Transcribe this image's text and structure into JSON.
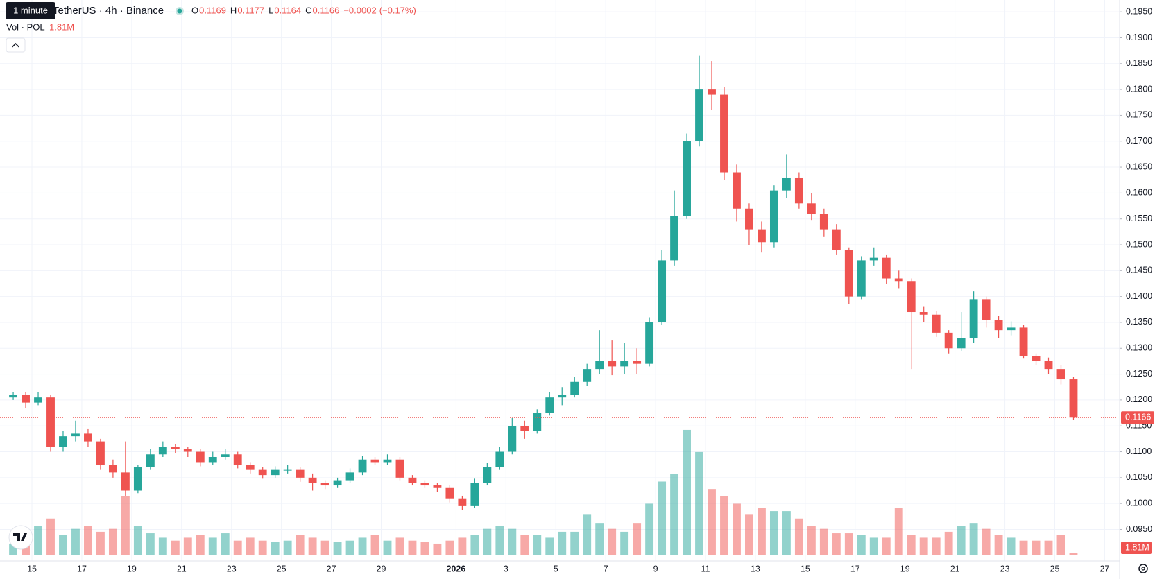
{
  "chart_data": {
    "type": "candlestick",
    "tooltip": "1 minute",
    "title": "TetherUS · 4h · Binance",
    "legend_labels": [
      "O",
      "H",
      "L",
      "C"
    ],
    "legend_values": [
      0.1169,
      0.1177,
      0.1164,
      0.1166
    ],
    "change": {
      "value": -0.0002,
      "label": "−0.0002"
    },
    "change_pct": {
      "value": -0.17,
      "label": "(−0.17%)"
    },
    "volume_title": "Vol · POL",
    "volume_value_label": "1.81M",
    "last_price": {
      "value": 0.1166,
      "label": "0.1166"
    },
    "up_color": "#26a69a",
    "down_color": "#ef5350",
    "grid": true,
    "xlim": [
      -1.28,
      43.6
    ],
    "xticks": [
      {
        "value": 0,
        "label": "15"
      },
      {
        "value": 2,
        "label": "17"
      },
      {
        "value": 4,
        "label": "19"
      },
      {
        "value": 6,
        "label": "21"
      },
      {
        "value": 8,
        "label": "23"
      },
      {
        "value": 10,
        "label": "25"
      },
      {
        "value": 12,
        "label": "27"
      },
      {
        "value": 14,
        "label": "29"
      },
      {
        "value": 17,
        "label": "2026"
      },
      {
        "value": 19,
        "label": "3"
      },
      {
        "value": 21,
        "label": "5"
      },
      {
        "value": 23,
        "label": "7"
      },
      {
        "value": 25,
        "label": "9"
      },
      {
        "value": 27,
        "label": "11"
      },
      {
        "value": 29,
        "label": "13"
      },
      {
        "value": 31,
        "label": "15"
      },
      {
        "value": 33,
        "label": "17"
      },
      {
        "value": 35,
        "label": "19"
      },
      {
        "value": 37,
        "label": "21"
      },
      {
        "value": 39,
        "label": "23"
      },
      {
        "value": 41,
        "label": "25"
      },
      {
        "value": 43,
        "label": "27"
      }
    ],
    "ylim": [
      0.0889,
      0.1973
    ],
    "yticks": [
      {
        "value": 0.095,
        "label": "0.0950"
      },
      {
        "value": 0.1,
        "label": "0.1000"
      },
      {
        "value": 0.105,
        "label": "0.1050"
      },
      {
        "value": 0.11,
        "label": "0.1100"
      },
      {
        "value": 0.115,
        "label": "0.1150"
      },
      {
        "value": 0.12,
        "label": "0.1200"
      },
      {
        "value": 0.125,
        "label": "0.1250"
      },
      {
        "value": 0.13,
        "label": "0.1300"
      },
      {
        "value": 0.135,
        "label": "0.1350"
      },
      {
        "value": 0.14,
        "label": "0.1400"
      },
      {
        "value": 0.145,
        "label": "0.1450"
      },
      {
        "value": 0.15,
        "label": "0.1500"
      },
      {
        "value": 0.155,
        "label": "0.1550"
      },
      {
        "value": 0.16,
        "label": "0.1600"
      },
      {
        "value": 0.165,
        "label": "0.1650"
      },
      {
        "value": 0.17,
        "label": "0.1700"
      },
      {
        "value": 0.175,
        "label": "0.1750"
      },
      {
        "value": 0.18,
        "label": "0.1800"
      },
      {
        "value": 0.185,
        "label": "0.1850"
      },
      {
        "value": 0.19,
        "label": "0.1900"
      },
      {
        "value": 0.195,
        "label": "0.1950"
      }
    ],
    "volume_lim": [
      0,
      100000000
    ],
    "x": [
      -0.75,
      -0.25,
      0.25,
      0.75,
      1.25,
      1.75,
      2.25,
      2.75,
      3.25,
      3.75,
      4.25,
      4.75,
      5.25,
      5.75,
      6.25,
      6.75,
      7.25,
      7.75,
      8.25,
      8.75,
      9.25,
      9.75,
      10.25,
      10.75,
      11.25,
      11.75,
      12.25,
      12.75,
      13.25,
      13.75,
      14.25,
      14.75,
      15.25,
      15.75,
      16.25,
      16.75,
      17.25,
      17.75,
      18.25,
      18.75,
      19.25,
      19.75,
      20.25,
      20.75,
      21.25,
      21.75,
      22.25,
      22.75,
      23.25,
      23.75,
      24.25,
      24.75,
      25.25,
      25.75,
      26.25,
      26.75,
      27.25,
      27.75,
      28.25,
      28.75,
      29.25,
      29.75,
      30.25,
      30.75,
      31.25,
      31.75,
      32.25,
      32.75,
      33.25,
      33.75,
      34.25,
      34.75,
      35.25,
      35.75,
      36.25,
      36.75,
      37.25,
      37.75,
      38.25,
      38.75,
      39.25,
      39.75,
      40.25,
      40.75,
      41.25,
      41.75
    ],
    "open": [
      0.1205,
      0.121,
      0.1195,
      0.1205,
      0.111,
      0.113,
      0.1135,
      0.112,
      0.1075,
      0.106,
      0.1025,
      0.107,
      0.1095,
      0.111,
      0.1105,
      0.11,
      0.108,
      0.109,
      0.1095,
      0.1075,
      0.1065,
      0.1055,
      0.1065,
      0.1065,
      0.105,
      0.104,
      0.1035,
      0.1045,
      0.106,
      0.1085,
      0.108,
      0.1085,
      0.105,
      0.104,
      0.1035,
      0.103,
      0.101,
      0.0995,
      0.104,
      0.107,
      0.11,
      0.115,
      0.114,
      0.1175,
      0.1205,
      0.121,
      0.1235,
      0.126,
      0.1275,
      0.1265,
      0.1275,
      0.127,
      0.135,
      0.147,
      0.1555,
      0.17,
      0.18,
      0.179,
      0.164,
      0.157,
      0.153,
      0.1505,
      0.1605,
      0.163,
      0.158,
      0.156,
      0.153,
      0.149,
      0.14,
      0.147,
      0.1475,
      0.1435,
      0.143,
      0.137,
      0.1365,
      0.133,
      0.13,
      0.132,
      0.1395,
      0.1355,
      0.1335,
      0.134,
      0.1285,
      0.1275,
      0.126,
      0.124
    ],
    "high": [
      0.1215,
      0.1215,
      0.1215,
      0.121,
      0.114,
      0.116,
      0.1145,
      0.1125,
      0.1085,
      0.112,
      0.1075,
      0.1105,
      0.112,
      0.1115,
      0.111,
      0.1105,
      0.11,
      0.1105,
      0.11,
      0.108,
      0.107,
      0.1072,
      0.1075,
      0.107,
      0.1058,
      0.1045,
      0.105,
      0.1068,
      0.1092,
      0.109,
      0.1095,
      0.109,
      0.1055,
      0.1045,
      0.104,
      0.1035,
      0.1015,
      0.1048,
      0.1078,
      0.111,
      0.1165,
      0.116,
      0.1182,
      0.1215,
      0.1225,
      0.1245,
      0.127,
      0.1335,
      0.1315,
      0.131,
      0.13,
      0.136,
      0.149,
      0.1605,
      0.1715,
      0.1865,
      0.1855,
      0.1805,
      0.1655,
      0.158,
      0.1545,
      0.1615,
      0.1675,
      0.164,
      0.16,
      0.157,
      0.154,
      0.1495,
      0.1478,
      0.1495,
      0.148,
      0.145,
      0.1435,
      0.138,
      0.1372,
      0.1335,
      0.137,
      0.141,
      0.14,
      0.1362,
      0.1352,
      0.1345,
      0.129,
      0.1282,
      0.1268,
      0.1245
    ],
    "low": [
      0.12,
      0.1185,
      0.119,
      0.11,
      0.11,
      0.112,
      0.111,
      0.1065,
      0.105,
      0.1015,
      0.102,
      0.1065,
      0.109,
      0.1098,
      0.109,
      0.1072,
      0.1075,
      0.1085,
      0.1068,
      0.1058,
      0.1048,
      0.105,
      0.1058,
      0.1042,
      0.1025,
      0.1028,
      0.103,
      0.104,
      0.1055,
      0.1075,
      0.1075,
      0.1045,
      0.1035,
      0.103,
      0.1022,
      0.1002,
      0.0988,
      0.0992,
      0.1035,
      0.1065,
      0.1095,
      0.1125,
      0.1135,
      0.117,
      0.119,
      0.1205,
      0.1228,
      0.125,
      0.1248,
      0.125,
      0.125,
      0.1265,
      0.1345,
      0.146,
      0.155,
      0.169,
      0.176,
      0.1625,
      0.1545,
      0.15,
      0.1485,
      0.1495,
      0.159,
      0.157,
      0.1548,
      0.1515,
      0.148,
      0.1385,
      0.1395,
      0.146,
      0.1425,
      0.1415,
      0.126,
      0.135,
      0.1322,
      0.129,
      0.1295,
      0.131,
      0.134,
      0.132,
      0.1325,
      0.128,
      0.1268,
      0.125,
      0.123,
      0.1162
    ],
    "close": [
      0.121,
      0.1195,
      0.1205,
      0.111,
      0.113,
      0.1135,
      0.112,
      0.1075,
      0.106,
      0.1025,
      0.107,
      0.1095,
      0.111,
      0.1105,
      0.11,
      0.108,
      0.109,
      0.1095,
      0.1075,
      0.1065,
      0.1055,
      0.1065,
      0.1065,
      0.105,
      0.104,
      0.1035,
      0.1045,
      0.106,
      0.1085,
      0.108,
      0.1085,
      0.105,
      0.104,
      0.1035,
      0.103,
      0.101,
      0.0995,
      0.104,
      0.107,
      0.11,
      0.115,
      0.114,
      0.1175,
      0.1205,
      0.121,
      0.1235,
      0.126,
      0.1275,
      0.1265,
      0.1275,
      0.127,
      0.135,
      0.147,
      0.1555,
      0.17,
      0.18,
      0.179,
      0.164,
      0.157,
      0.153,
      0.1505,
      0.1605,
      0.163,
      0.158,
      0.156,
      0.153,
      0.149,
      0.14,
      0.147,
      0.1475,
      0.1435,
      0.143,
      0.137,
      0.1365,
      0.133,
      0.13,
      0.132,
      0.1395,
      0.1355,
      0.1335,
      0.134,
      0.1285,
      0.1275,
      0.126,
      0.124,
      0.1166
    ],
    "volume": [
      8000000,
      12000000,
      20000000,
      25000000,
      14000000,
      18000000,
      20000000,
      16000000,
      18000000,
      40000000,
      20000000,
      15000000,
      12000000,
      10000000,
      12000000,
      14000000,
      12000000,
      15000000,
      10000000,
      12000000,
      10000000,
      9000000,
      10000000,
      14000000,
      12000000,
      10000000,
      9000000,
      10000000,
      12000000,
      14000000,
      10000000,
      12000000,
      10000000,
      9000000,
      8000000,
      10000000,
      12000000,
      14000000,
      18000000,
      20000000,
      18000000,
      14000000,
      14000000,
      12000000,
      16000000,
      16000000,
      28000000,
      22000000,
      18000000,
      16000000,
      22000000,
      35000000,
      50000000,
      55000000,
      85000000,
      70000000,
      45000000,
      40000000,
      35000000,
      28000000,
      32000000,
      30000000,
      30000000,
      25000000,
      20000000,
      18000000,
      15000000,
      15000000,
      14000000,
      12000000,
      12000000,
      32000000,
      14000000,
      12000000,
      12000000,
      16000000,
      20000000,
      22000000,
      18000000,
      14000000,
      12000000,
      10000000,
      10000000,
      10000000,
      14000000,
      1810000
    ]
  }
}
